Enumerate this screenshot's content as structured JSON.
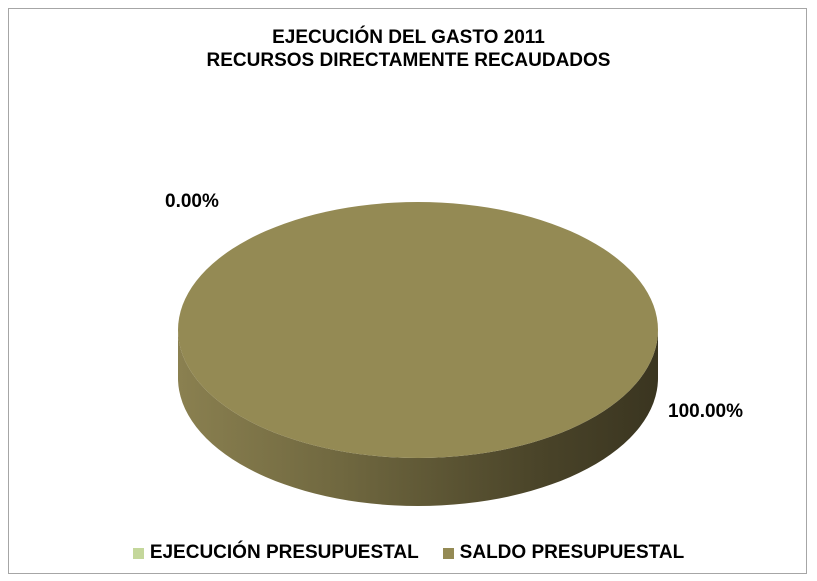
{
  "chart_data": {
    "type": "pie",
    "title": [
      "EJECUCIÓN DEL GASTO  2011",
      "RECURSOS DIRECTAMENTE RECAUDADOS"
    ],
    "categories": [
      "EJECUCIÓN PRESUPUESTAL",
      "SALDO PRESUPUESTAL"
    ],
    "values": [
      0.0,
      100.0
    ],
    "data_labels": [
      "0.00%",
      "100.00%"
    ],
    "colors": [
      "#c4d79b",
      "#948a54"
    ],
    "legend_position": "bottom",
    "style": "3d-pie"
  }
}
